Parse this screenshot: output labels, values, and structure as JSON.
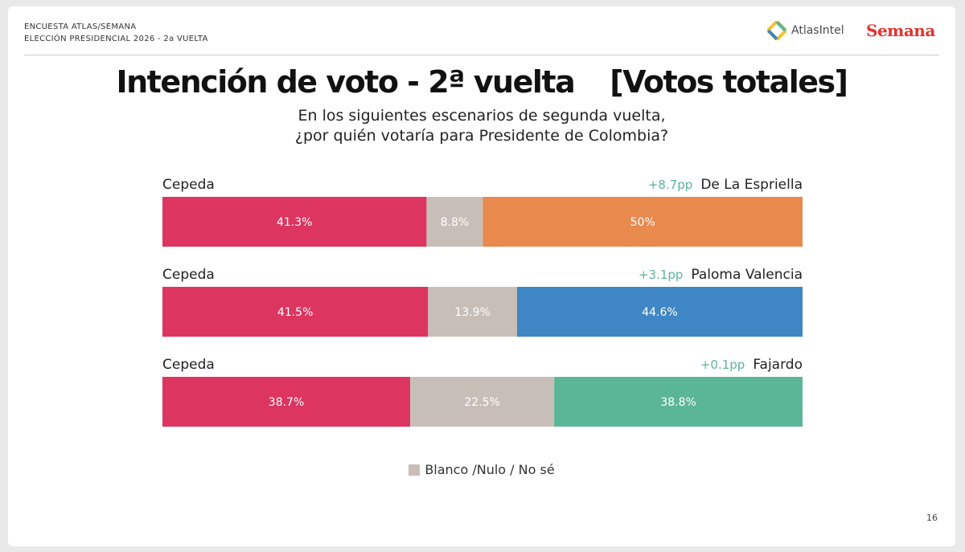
{
  "header": {
    "line1": "ENCUESTA ATLAS/SEMANA",
    "line2": "ELECCIÓN PRESIDENCIAL 2026 - 2a VUELTA",
    "atlas_logo_text": "AtlasIntel",
    "semana_logo_text": "Semana"
  },
  "page_number": "16",
  "chart_data": {
    "type": "bar",
    "stacked": true,
    "orientation": "horizontal",
    "title": "Intención de voto - 2ª vuelta",
    "title_tag": "[Votos totales]",
    "subtitle_line1": "En los siguientes escenarios de segunda vuelta,",
    "subtitle_line2": "¿por quién votaría para Presidente de Colombia?",
    "legend": [
      {
        "name": "Blanco /Nulo / No sé",
        "color": "#c8beb8",
        "placement": "bottom-center"
      }
    ],
    "scenarios": [
      {
        "left_candidate": "Cepeda",
        "right_candidate": "De La Espriella",
        "margin_label": "+8.7pp",
        "values": [
          41.3,
          8.8,
          50
        ],
        "value_labels": [
          "41.3%",
          "8.8%",
          "50%"
        ],
        "colors": [
          "#dc3560",
          "#c8beb8",
          "#e88a4e"
        ]
      },
      {
        "left_candidate": "Cepeda",
        "right_candidate": "Paloma Valencia",
        "margin_label": "+3.1pp",
        "values": [
          41.5,
          13.9,
          44.6
        ],
        "value_labels": [
          "41.5%",
          "13.9%",
          "44.6%"
        ],
        "colors": [
          "#dc3560",
          "#c8beb8",
          "#3f86c4"
        ]
      },
      {
        "left_candidate": "Cepeda",
        "right_candidate": "Fajardo",
        "margin_label": "+0.1pp",
        "values": [
          38.7,
          22.5,
          38.8
        ],
        "value_labels": [
          "38.7%",
          "22.5%",
          "38.8%"
        ],
        "colors": [
          "#dc3560",
          "#c8beb8",
          "#5bb597"
        ]
      }
    ],
    "margin_color": "#5bb597"
  }
}
